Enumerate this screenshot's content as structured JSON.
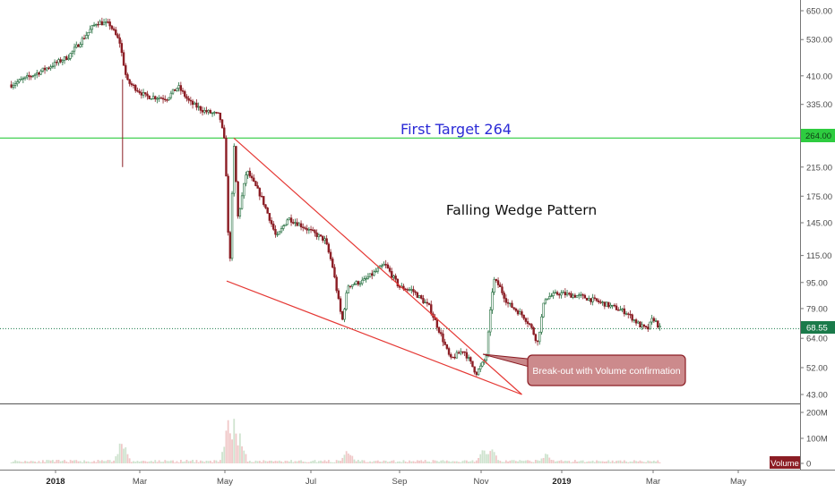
{
  "chart_data": {
    "type": "candlestick",
    "scale": "log",
    "price_axis_ticks": [
      650,
      530,
      410,
      335,
      264,
      215,
      175,
      145,
      115,
      95,
      79,
      64,
      52,
      43
    ],
    "volume_axis_ticks": [
      "200M",
      "100M",
      "0"
    ],
    "x_tick_labels": [
      "2018",
      "Mar",
      "May",
      "Jul",
      "Sep",
      "Nov",
      "2019",
      "Mar",
      "May"
    ],
    "horizontal_line": {
      "value": 264,
      "label": "264.00",
      "color": "#2ecc40"
    },
    "last_price": {
      "value": 68.55,
      "label": "68.55",
      "color": "#1a7a4a"
    },
    "annotations": {
      "target": "First Target 264",
      "pattern": "Falling Wedge Pattern",
      "breakout": "Break-out with Volume confirmation"
    },
    "volume_label": "Volume",
    "wedge": {
      "upper_line": [
        [
          "2018-05-06",
          264
        ],
        [
          "2018-11-24",
          43
        ]
      ],
      "lower_line": [
        [
          "2018-05-01",
          96
        ],
        [
          "2018-11-24",
          43
        ]
      ]
    },
    "price_keypoints": [
      [
        "2017-12-01",
        385
      ],
      [
        "2017-12-20",
        420
      ],
      [
        "2018-01-10",
        470
      ],
      [
        "2018-01-22",
        545
      ],
      [
        "2018-01-30",
        600
      ],
      [
        "2018-02-08",
        590
      ],
      [
        "2018-02-15",
        520
      ],
      [
        "2018-02-20",
        395
      ],
      [
        "2018-03-05",
        355
      ],
      [
        "2018-03-20",
        350
      ],
      [
        "2018-03-28",
        380
      ],
      [
        "2018-04-05",
        340
      ],
      [
        "2018-04-15",
        320
      ],
      [
        "2018-04-26",
        310
      ],
      [
        "2018-04-30",
        250
      ],
      [
        "2018-05-03",
        100
      ],
      [
        "2018-05-06",
        255
      ],
      [
        "2018-05-09",
        150
      ],
      [
        "2018-05-15",
        210
      ],
      [
        "2018-05-25",
        175
      ],
      [
        "2018-05-31",
        150
      ],
      [
        "2018-06-05",
        130
      ],
      [
        "2018-06-13",
        150
      ],
      [
        "2018-06-25",
        140
      ],
      [
        "2018-07-09",
        128
      ],
      [
        "2018-07-14",
        108
      ],
      [
        "2018-07-21",
        72
      ],
      [
        "2018-07-25",
        93
      ],
      [
        "2018-08-05",
        96
      ],
      [
        "2018-08-20",
        108
      ],
      [
        "2018-08-30",
        92
      ],
      [
        "2018-09-08",
        90
      ],
      [
        "2018-09-20",
        80
      ],
      [
        "2018-09-28",
        66
      ],
      [
        "2018-10-05",
        55
      ],
      [
        "2018-10-14",
        59
      ],
      [
        "2018-10-23",
        50
      ],
      [
        "2018-10-27",
        53
      ],
      [
        "2018-10-30",
        56
      ],
      [
        "2018-11-01",
        70
      ],
      [
        "2018-11-04",
        97
      ],
      [
        "2018-11-08",
        93
      ],
      [
        "2018-11-14",
        82
      ],
      [
        "2018-11-25",
        75
      ],
      [
        "2018-11-30",
        70
      ],
      [
        "2018-12-05",
        62
      ],
      [
        "2018-12-10",
        85
      ],
      [
        "2018-12-20",
        88
      ],
      [
        "2019-01-05",
        86
      ],
      [
        "2019-01-20",
        82
      ],
      [
        "2019-02-05",
        77
      ],
      [
        "2019-02-15",
        70
      ],
      [
        "2019-02-20",
        68
      ],
      [
        "2019-02-24",
        74
      ],
      [
        "2019-03-01",
        68.55
      ]
    ],
    "volume_spikes": [
      [
        "2018-02-17",
        120
      ],
      [
        "2018-05-02",
        180
      ],
      [
        "2018-05-06",
        200
      ],
      [
        "2018-05-10",
        130
      ],
      [
        "2018-07-25",
        60
      ],
      [
        "2018-10-28",
        60
      ],
      [
        "2018-11-03",
        70
      ],
      [
        "2018-12-11",
        45
      ]
    ]
  }
}
